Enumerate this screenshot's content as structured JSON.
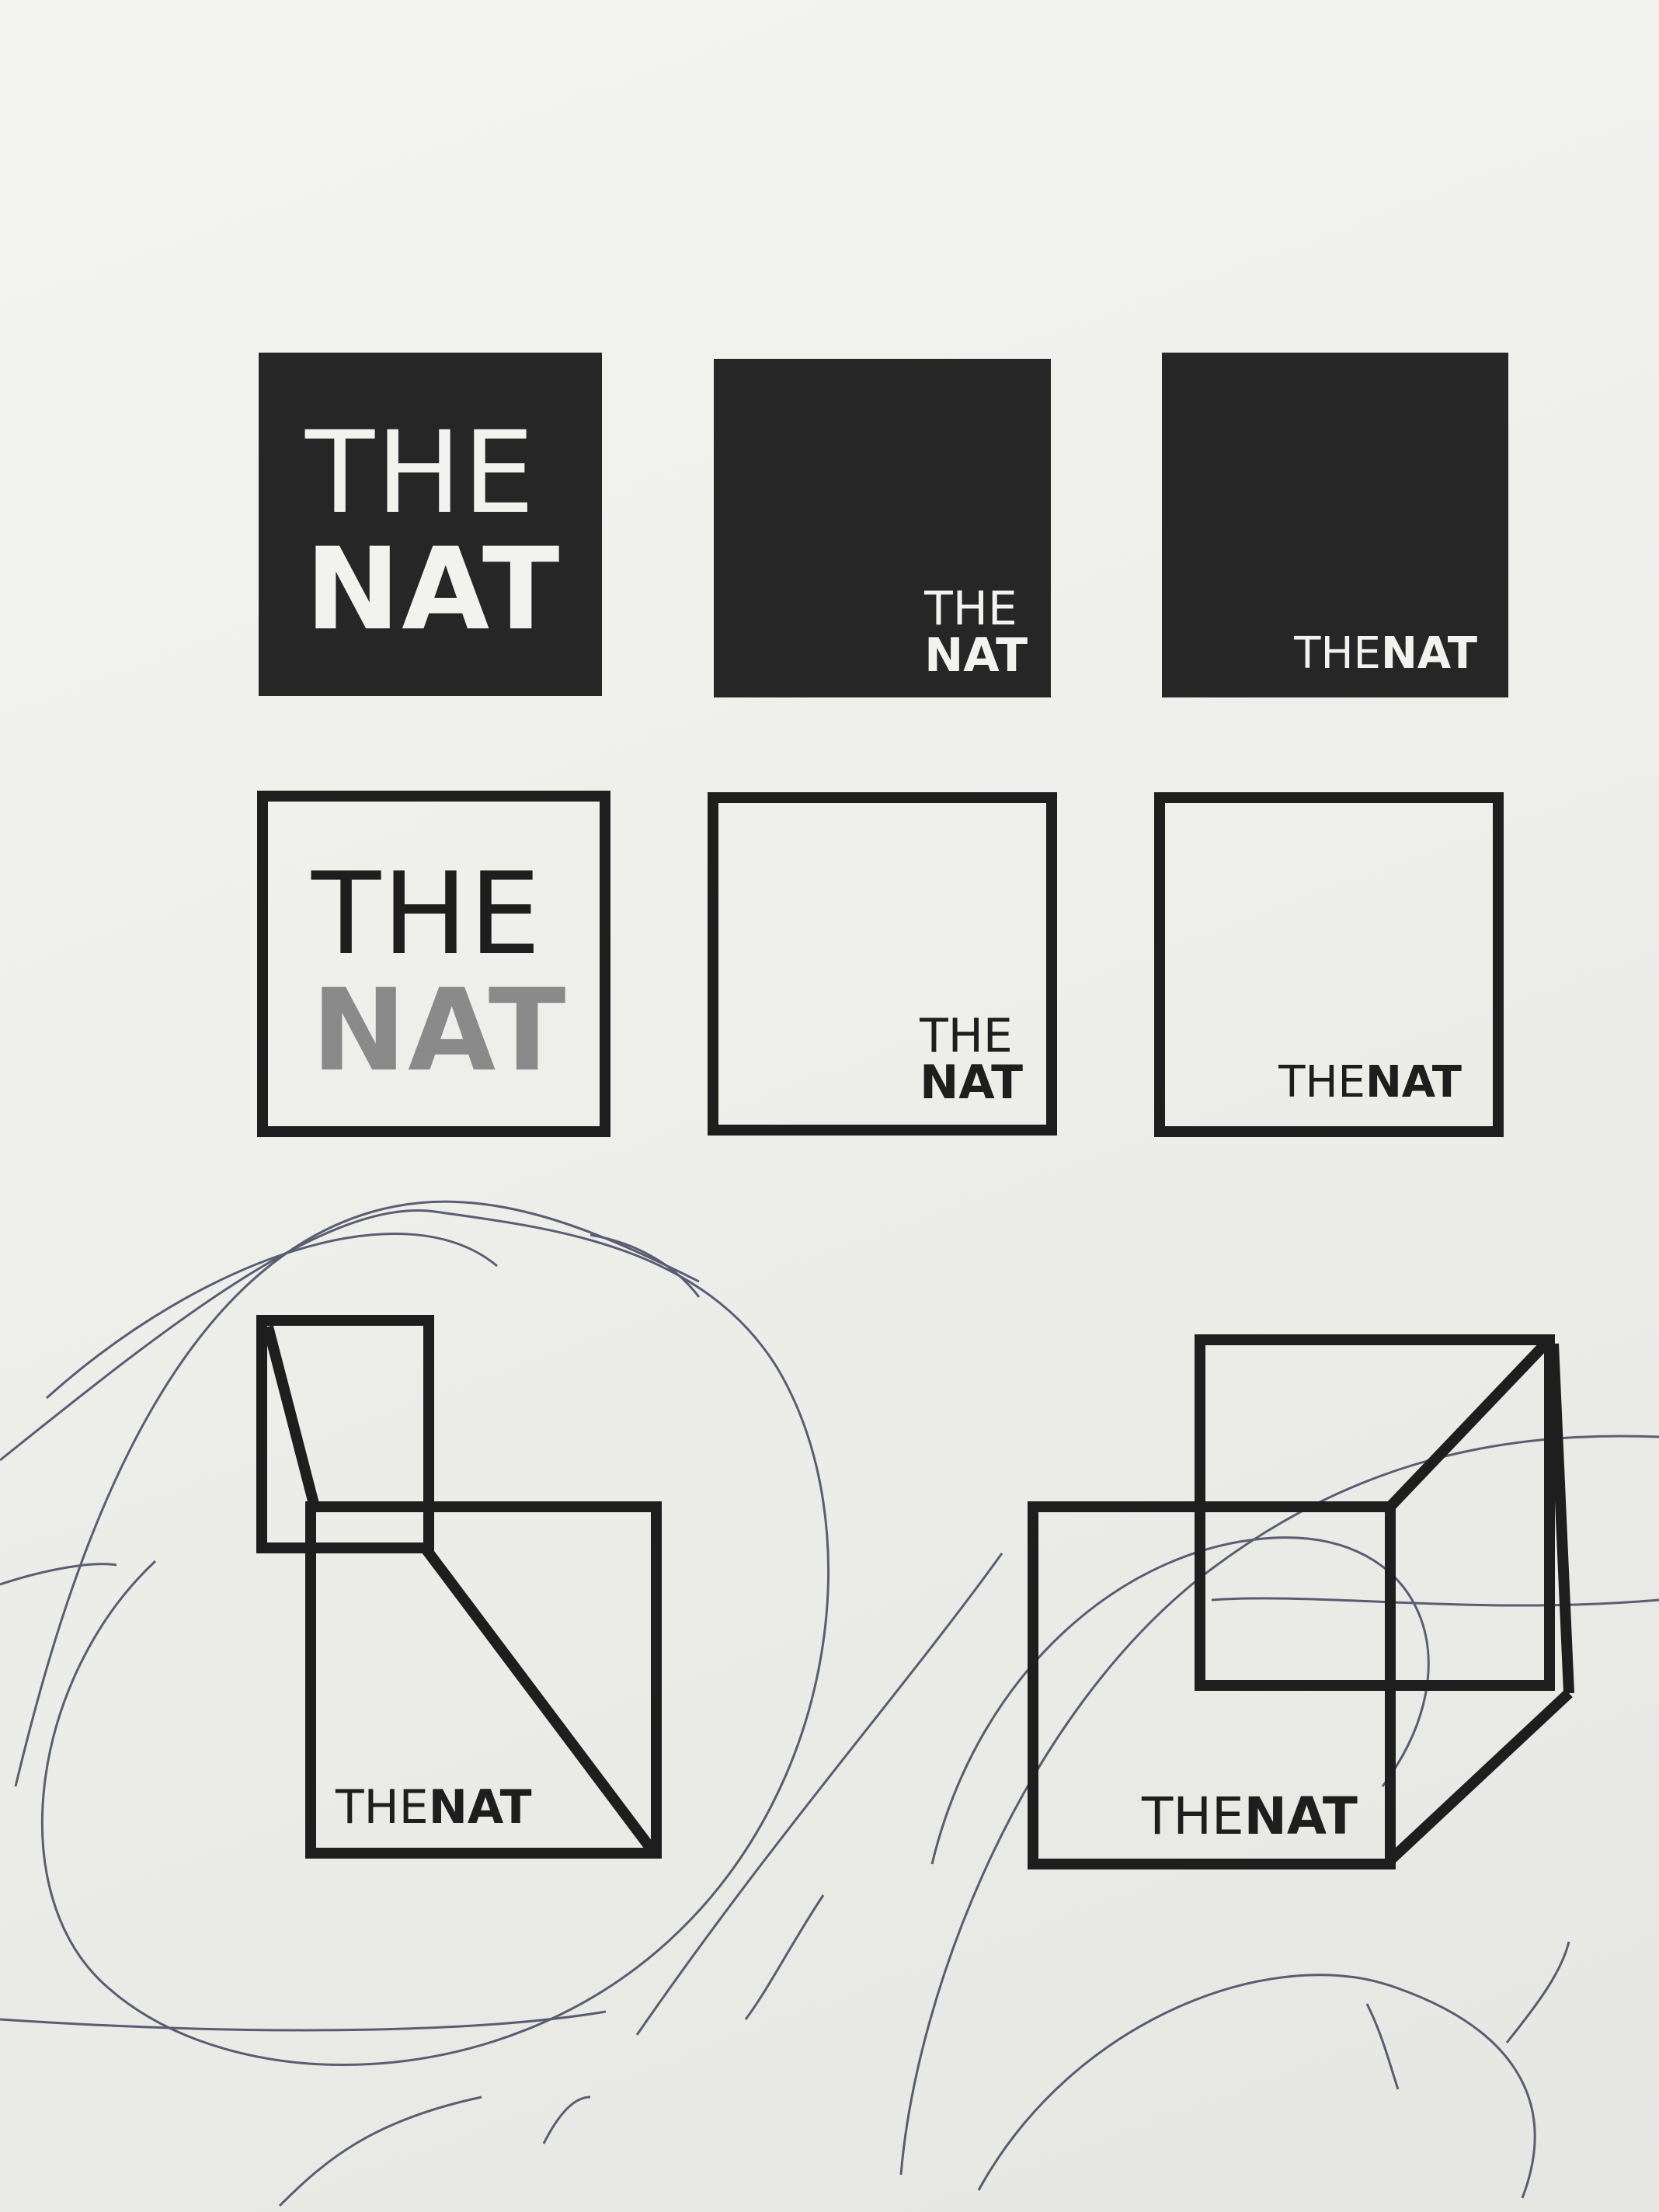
{
  "logos": {
    "solid_large": {
      "line1": "THE",
      "line2": "NAT"
    },
    "solid_stacked": {
      "line1": "THE",
      "line2": "NAT"
    },
    "solid_inline": {
      "word1": "THE",
      "word2": "NAT"
    },
    "outline_large": {
      "line1": "THE",
      "line2": "NAT"
    },
    "outline_stacked": {
      "line1": "THE",
      "line2": "NAT"
    },
    "outline_inline": {
      "word1": "THE",
      "word2": "NAT"
    },
    "chair_logo": {
      "word1": "THE",
      "word2": "NAT"
    },
    "cube_logo": {
      "word1": "THE",
      "word2": "NAT"
    }
  },
  "colors": {
    "ink": "#1e1e1e",
    "paper": "#f2f2ef",
    "pen": "#2a2f4a"
  }
}
